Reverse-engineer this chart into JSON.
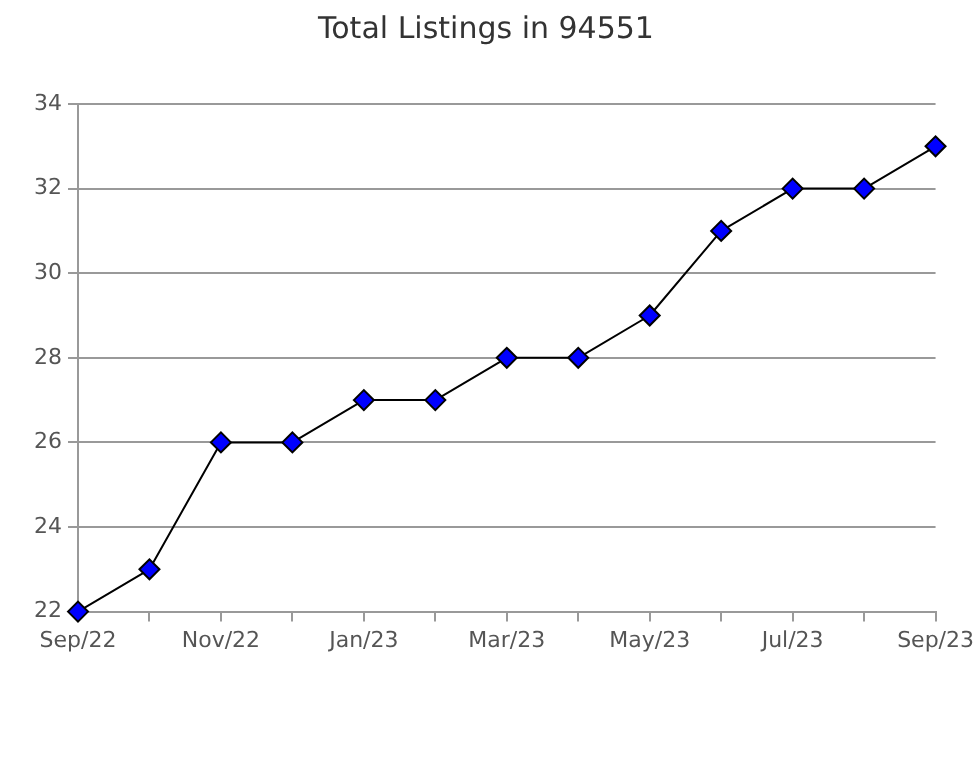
{
  "chart_data": {
    "type": "line",
    "title": "Total Listings in 94551",
    "categories": [
      "Sep/22",
      null,
      "Nov/22",
      null,
      "Jan/23",
      null,
      "Mar/23",
      null,
      "May/23",
      null,
      "Jul/23",
      null,
      "Sep/23"
    ],
    "series": [
      {
        "color": "#0000ff",
        "values": [
          22,
          23,
          26,
          26,
          27,
          27,
          28,
          28,
          29,
          31,
          32,
          32,
          33
        ]
      }
    ],
    "ylim": [
      22,
      34
    ],
    "yticks": [
      22,
      24,
      26,
      28,
      30,
      32,
      34
    ],
    "grid": "y",
    "legend": false,
    "marker": "diamond",
    "line_style": "solid"
  }
}
